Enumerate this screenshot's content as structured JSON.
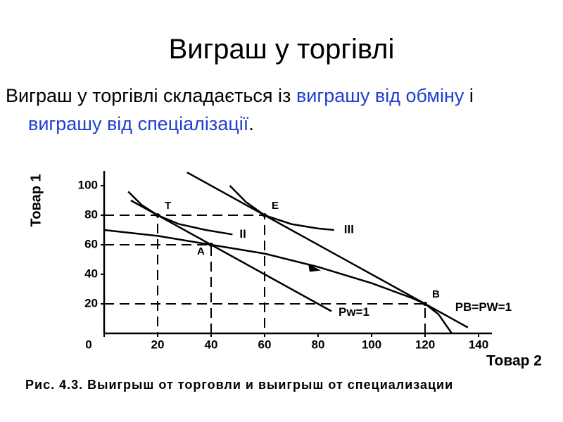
{
  "slide": {
    "title": "Виграш у торгівлі",
    "text": [
      "Виграш у торгівлі складається із ",
      "виграшу від обміну",
      " і ",
      "виграшу від спеціалізації",
      "."
    ]
  },
  "chart_data": {
    "type": "line",
    "x_label": "Товар 2",
    "y_label": "Товар 1",
    "caption": "Рис. 4.3. Выигрыш от торговли и выигрыш от специализации",
    "xlim": [
      0,
      145
    ],
    "ylim": [
      0,
      110
    ],
    "xticks": [
      0,
      20,
      40,
      60,
      80,
      100,
      120,
      140
    ],
    "yticks": [
      20,
      40,
      60,
      80,
      100
    ],
    "series": [
      {
        "name": "II",
        "color": "#000000",
        "x": [
          9,
          14,
          20,
          28,
          38,
          48
        ],
        "values": [
          96,
          87,
          80,
          74,
          70,
          67
        ]
      },
      {
        "name": "III",
        "color": "#000000",
        "x": [
          47,
          53,
          60,
          70,
          80,
          86
        ],
        "values": [
          100,
          89,
          80,
          74,
          71,
          70
        ]
      },
      {
        "color": "#000000",
        "x": [
          0,
          20,
          40,
          60,
          80,
          100,
          115,
          120,
          125,
          130
        ],
        "values": [
          70,
          66,
          60,
          54,
          45,
          34,
          24,
          20,
          13,
          0
        ]
      },
      {
        "name": "Pw=1",
        "color": "#000000",
        "x": [
          10,
          85
        ],
        "values": [
          90,
          15
        ]
      },
      {
        "name": "PB=PW=1",
        "color": "#000000",
        "x": [
          31,
          136
        ],
        "values": [
          109,
          4
        ]
      }
    ],
    "points": [
      {
        "label": "T",
        "x": 20,
        "y": 80
      },
      {
        "label": "E",
        "x": 60,
        "y": 80
      },
      {
        "label": "A",
        "x": 40,
        "y": 60
      },
      {
        "label": "B",
        "x": 120,
        "y": 20
      }
    ]
  }
}
